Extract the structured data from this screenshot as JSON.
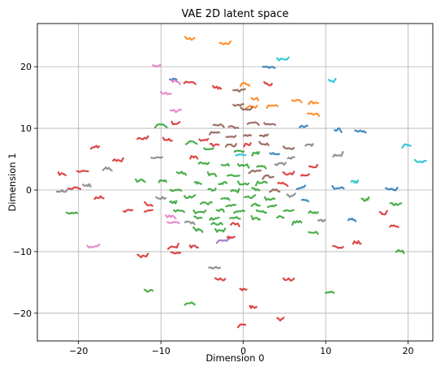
{
  "chart_data": {
    "type": "line",
    "title": "VAE 2D latent space",
    "xlabel": "Dimension 0",
    "ylabel": "Dimension 1",
    "xlim": [
      -25,
      23
    ],
    "ylim": [
      -24.5,
      27
    ],
    "xticks": [
      -20,
      -10,
      0,
      10,
      20
    ],
    "yticks": [
      -20,
      -10,
      0,
      10,
      20
    ],
    "grid": true,
    "palette": {
      "blue": "#1f77b4",
      "orange": "#ff7f0e",
      "green": "#2ca02c",
      "red": "#d62728",
      "purple": "#9467bd",
      "brown": "#8c564b",
      "pink": "#e377c2",
      "gray": "#7f7f7f",
      "cyan": "#17becf"
    },
    "traces": [
      {
        "c": "orange",
        "x": -6.5,
        "y": 24.5
      },
      {
        "c": "orange",
        "x": -2.2,
        "y": 23.7
      },
      {
        "c": "cyan",
        "x": 4.8,
        "y": 21.2
      },
      {
        "c": "blue",
        "x": 3.1,
        "y": 19.9
      },
      {
        "c": "pink",
        "x": -10.5,
        "y": 20.1
      },
      {
        "c": "blue",
        "x": -8.5,
        "y": 18
      },
      {
        "c": "pink",
        "x": -8.2,
        "y": 17.6
      },
      {
        "c": "red",
        "x": -6.5,
        "y": 17.4
      },
      {
        "c": "red",
        "x": -3.2,
        "y": 16.6
      },
      {
        "c": "orange",
        "x": 0.2,
        "y": 17.2
      },
      {
        "c": "red",
        "x": 3,
        "y": 17.1
      },
      {
        "c": "cyan",
        "x": 10.8,
        "y": 17.6
      },
      {
        "c": "pink",
        "x": -9.4,
        "y": 15.6
      },
      {
        "c": "brown",
        "x": -0.5,
        "y": 16.1
      },
      {
        "c": "orange",
        "x": 1.4,
        "y": 14.8
      },
      {
        "c": "orange",
        "x": 6.5,
        "y": 14.6
      },
      {
        "c": "orange",
        "x": 8.5,
        "y": 14.2
      },
      {
        "c": "orange",
        "x": 1,
        "y": 13.5
      },
      {
        "c": "pink",
        "x": -8.2,
        "y": 12.8
      },
      {
        "c": "brown",
        "x": -0.6,
        "y": 13.8
      },
      {
        "c": "brown",
        "x": 0.4,
        "y": 13
      },
      {
        "c": "orange",
        "x": 3.5,
        "y": 13.6
      },
      {
        "c": "orange",
        "x": 8.5,
        "y": 12.3
      },
      {
        "c": "green",
        "x": -10,
        "y": 10.5
      },
      {
        "c": "red",
        "x": -8.2,
        "y": 10.8
      },
      {
        "c": "brown",
        "x": -3,
        "y": 10.5
      },
      {
        "c": "brown",
        "x": -1.2,
        "y": 10.2
      },
      {
        "c": "brown",
        "x": 1.2,
        "y": 10.8
      },
      {
        "c": "brown",
        "x": 3.2,
        "y": 10.6
      },
      {
        "c": "blue",
        "x": 7.3,
        "y": 10.2
      },
      {
        "c": "blue",
        "x": 11.5,
        "y": 9.8
      },
      {
        "c": "blue",
        "x": 14.2,
        "y": 9.5
      },
      {
        "c": "brown",
        "x": -3.5,
        "y": 9.2
      },
      {
        "c": "brown",
        "x": -1.5,
        "y": 8.5
      },
      {
        "c": "brown",
        "x": 0.5,
        "y": 8.9
      },
      {
        "c": "brown",
        "x": 2.5,
        "y": 8.8
      },
      {
        "c": "red",
        "x": -12.2,
        "y": 8.3
      },
      {
        "c": "red",
        "x": -9.2,
        "y": 8.1
      },
      {
        "c": "green",
        "x": -6.3,
        "y": 7.8
      },
      {
        "c": "red",
        "x": -4.8,
        "y": 8.1
      },
      {
        "c": "red",
        "x": -3.5,
        "y": 7.3
      },
      {
        "c": "brown",
        "x": -1.5,
        "y": 7.2
      },
      {
        "c": "red",
        "x": 0.5,
        "y": 7.3
      },
      {
        "c": "brown",
        "x": 2.5,
        "y": 7.5
      },
      {
        "c": "brown",
        "x": 5.5,
        "y": 6.8
      },
      {
        "c": "gray",
        "x": 8,
        "y": 7.3
      },
      {
        "c": "cyan",
        "x": 19.8,
        "y": 7.3
      },
      {
        "c": "red",
        "x": -18,
        "y": 7
      },
      {
        "c": "green",
        "x": -4.2,
        "y": 6.5
      },
      {
        "c": "green",
        "x": -0.5,
        "y": 6.2
      },
      {
        "c": "green",
        "x": 1.5,
        "y": 6
      },
      {
        "c": "blue",
        "x": 3.8,
        "y": 5.9
      },
      {
        "c": "gray",
        "x": 11.5,
        "y": 5.7
      },
      {
        "c": "red",
        "x": -15.2,
        "y": 4.8
      },
      {
        "c": "gray",
        "x": -10.5,
        "y": 5.3
      },
      {
        "c": "red",
        "x": -6,
        "y": 5.3
      },
      {
        "c": "cyan",
        "x": -0.3,
        "y": 5.6
      },
      {
        "c": "gray",
        "x": 5.8,
        "y": 5.2
      },
      {
        "c": "cyan",
        "x": 21.5,
        "y": 4.6
      },
      {
        "c": "gray",
        "x": -16.5,
        "y": 3.5
      },
      {
        "c": "green",
        "x": -4.8,
        "y": 4.3
      },
      {
        "c": "green",
        "x": -2.2,
        "y": 4.1
      },
      {
        "c": "green",
        "x": 0,
        "y": 4
      },
      {
        "c": "green",
        "x": 2.2,
        "y": 3.8
      },
      {
        "c": "gray",
        "x": 4.5,
        "y": 4.2
      },
      {
        "c": "red",
        "x": 8.5,
        "y": 3.7
      },
      {
        "c": "red",
        "x": -19.5,
        "y": 3
      },
      {
        "c": "red",
        "x": -22,
        "y": 2.6
      },
      {
        "c": "green",
        "x": -7.5,
        "y": 2.8
      },
      {
        "c": "green",
        "x": -3.8,
        "y": 2.5
      },
      {
        "c": "green",
        "x": -1.2,
        "y": 2.3
      },
      {
        "c": "brown",
        "x": 1.4,
        "y": 3
      },
      {
        "c": "brown",
        "x": 3,
        "y": 2.2
      },
      {
        "c": "red",
        "x": 5.5,
        "y": 2.6
      },
      {
        "c": "red",
        "x": 7.5,
        "y": 2.5
      },
      {
        "c": "green",
        "x": -12.5,
        "y": 1.5
      },
      {
        "c": "green",
        "x": -9.8,
        "y": 1.4
      },
      {
        "c": "green",
        "x": -5.5,
        "y": 1.2
      },
      {
        "c": "green",
        "x": -2.5,
        "y": 1.1
      },
      {
        "c": "green",
        "x": 0,
        "y": 1
      },
      {
        "c": "green",
        "x": 2.2,
        "y": 1.2
      },
      {
        "c": "red",
        "x": 4.8,
        "y": 1
      },
      {
        "c": "cyan",
        "x": 13.5,
        "y": 1.3
      },
      {
        "c": "gray",
        "x": -19,
        "y": 0.8
      },
      {
        "c": "red",
        "x": -20.5,
        "y": 0.3
      },
      {
        "c": "gray",
        "x": -22,
        "y": -0.2
      },
      {
        "c": "green",
        "x": -8.2,
        "y": 0
      },
      {
        "c": "green",
        "x": -3.8,
        "y": 0
      },
      {
        "c": "green",
        "x": -1,
        "y": -0.2
      },
      {
        "c": "green",
        "x": 1.5,
        "y": 0.1
      },
      {
        "c": "brown",
        "x": 3.8,
        "y": 0
      },
      {
        "c": "blue",
        "x": 7,
        "y": 0.3
      },
      {
        "c": "blue",
        "x": 11.5,
        "y": 0.3
      },
      {
        "c": "blue",
        "x": 18,
        "y": 0.1
      },
      {
        "c": "red",
        "x": -17.5,
        "y": -1.2
      },
      {
        "c": "gray",
        "x": -10,
        "y": -1.3
      },
      {
        "c": "green",
        "x": -6.5,
        "y": -1.2
      },
      {
        "c": "green",
        "x": -2.2,
        "y": -1.3
      },
      {
        "c": "green",
        "x": 0.8,
        "y": -1.2
      },
      {
        "c": "green",
        "x": 3.2,
        "y": -1.5
      },
      {
        "c": "gray",
        "x": 5.8,
        "y": -1
      },
      {
        "c": "blue",
        "x": 7.5,
        "y": -1.7
      },
      {
        "c": "green",
        "x": 14.8,
        "y": -1.6
      },
      {
        "c": "red",
        "x": -11.5,
        "y": -2.3
      },
      {
        "c": "green",
        "x": -8.5,
        "y": -2
      },
      {
        "c": "green",
        "x": -4.5,
        "y": -2.2
      },
      {
        "c": "green",
        "x": -1.5,
        "y": -2.5
      },
      {
        "c": "green",
        "x": 1.5,
        "y": -2.4
      },
      {
        "c": "green",
        "x": 3.5,
        "y": -2.7
      },
      {
        "c": "green",
        "x": 18.5,
        "y": -2.3
      },
      {
        "c": "red",
        "x": -14,
        "y": -3.4
      },
      {
        "c": "red",
        "x": -11.5,
        "y": -3.4
      },
      {
        "c": "green",
        "x": -7.8,
        "y": -3.4
      },
      {
        "c": "green",
        "x": -5.3,
        "y": -3.6
      },
      {
        "c": "green",
        "x": -2.8,
        "y": -3.3
      },
      {
        "c": "green",
        "x": -0.5,
        "y": -3.5
      },
      {
        "c": "green",
        "x": 2.2,
        "y": -3.5
      },
      {
        "c": "green",
        "x": 5.5,
        "y": -3.4
      },
      {
        "c": "green",
        "x": 8.5,
        "y": -3.6
      },
      {
        "c": "green",
        "x": -20.8,
        "y": -3.8
      },
      {
        "c": "red",
        "x": 17,
        "y": -3.8
      },
      {
        "c": "pink",
        "x": -8.8,
        "y": -4.3
      },
      {
        "c": "green",
        "x": -5.5,
        "y": -4.5
      },
      {
        "c": "green",
        "x": -3.5,
        "y": -4.7
      },
      {
        "c": "green",
        "x": -1,
        "y": -4.6
      },
      {
        "c": "green",
        "x": 1.5,
        "y": -4.7
      },
      {
        "c": "green",
        "x": 4.5,
        "y": -4.3
      },
      {
        "c": "blue",
        "x": 13.2,
        "y": -4.8
      },
      {
        "c": "pink",
        "x": -8.5,
        "y": -5.2
      },
      {
        "c": "gray",
        "x": -6.5,
        "y": -5.3
      },
      {
        "c": "green",
        "x": -3.2,
        "y": -5.5
      },
      {
        "c": "red",
        "x": -1,
        "y": -5.5
      },
      {
        "c": "green",
        "x": 6.5,
        "y": -5.2
      },
      {
        "c": "gray",
        "x": 9.5,
        "y": -5
      },
      {
        "c": "red",
        "x": 18.3,
        "y": -5.8
      },
      {
        "c": "green",
        "x": -5.5,
        "y": -6.5
      },
      {
        "c": "green",
        "x": -2.8,
        "y": -6.6
      },
      {
        "c": "green",
        "x": 8.5,
        "y": -6.8
      },
      {
        "c": "red",
        "x": -1.5,
        "y": -7.7
      },
      {
        "c": "purple",
        "x": -2.5,
        "y": -8.3
      },
      {
        "c": "red",
        "x": 13.8,
        "y": -8.5
      },
      {
        "c": "pink",
        "x": -18.2,
        "y": -9.2
      },
      {
        "c": "red",
        "x": -8.5,
        "y": -9.2
      },
      {
        "c": "red",
        "x": -6,
        "y": -9.2
      },
      {
        "c": "red",
        "x": 11.5,
        "y": -9.3
      },
      {
        "c": "red",
        "x": -8.2,
        "y": -10.2
      },
      {
        "c": "green",
        "x": 19,
        "y": -9.8
      },
      {
        "c": "red",
        "x": -12.2,
        "y": -10.8
      },
      {
        "c": "gray",
        "x": -3.5,
        "y": -12.7
      },
      {
        "c": "red",
        "x": -2.8,
        "y": -14.5
      },
      {
        "c": "red",
        "x": 5.5,
        "y": -14.5
      },
      {
        "c": "green",
        "x": -11.5,
        "y": -16.4
      },
      {
        "c": "red",
        "x": 0,
        "y": -16.2
      },
      {
        "c": "green",
        "x": 10.5,
        "y": -16.6
      },
      {
        "c": "green",
        "x": -6.5,
        "y": -18.3
      },
      {
        "c": "red",
        "x": 1.2,
        "y": -19
      },
      {
        "c": "red",
        "x": 4.5,
        "y": -21
      },
      {
        "c": "red",
        "x": -0.2,
        "y": -22
      }
    ]
  }
}
